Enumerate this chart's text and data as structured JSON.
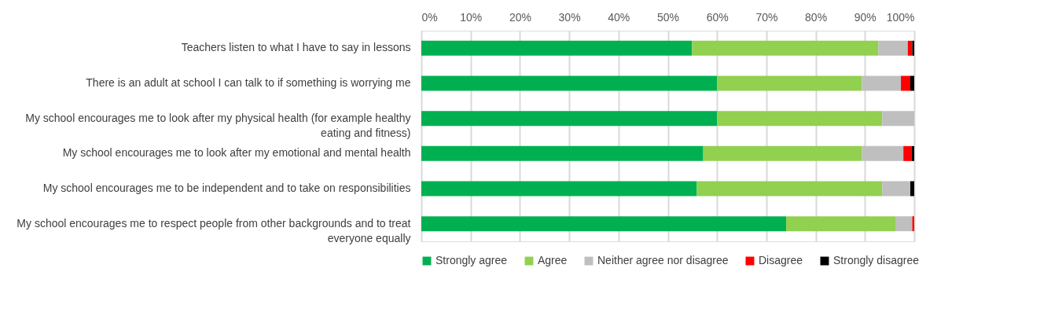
{
  "chart_data": {
    "type": "bar",
    "orientation": "horizontal",
    "stacked": true,
    "categories": [
      "Teachers listen to what I have to say in lessons",
      "There is an adult at school I can talk to if something is worrying me",
      "My school encourages me to look after my physical health (for example healthy eating and fitness)",
      "My school encourages me to look after my emotional and mental health",
      "My school encourages me to be independent and to take on responsibilities",
      "My school encourages me to respect people from other backgrounds and to treat everyone equally"
    ],
    "series": [
      {
        "name": "Strongly agree",
        "color": "#00b050",
        "values": [
          54.9,
          60.0,
          60.0,
          57.2,
          55.9,
          74.0
        ]
      },
      {
        "name": "Agree",
        "color": "#92d050",
        "values": [
          37.8,
          29.4,
          33.5,
          32.2,
          37.6,
          22.3
        ]
      },
      {
        "name": "Neither agree nor disagree",
        "color": "#bfbfbf",
        "values": [
          6.0,
          7.9,
          6.5,
          8.4,
          5.7,
          3.3
        ]
      },
      {
        "name": "Disagree",
        "color": "#ff0000",
        "values": [
          0.9,
          1.9,
          0,
          1.7,
          0,
          0.4
        ]
      },
      {
        "name": "Strongly disagree",
        "color": "#000000",
        "values": [
          0.4,
          0.8,
          0,
          0.5,
          0.8,
          0
        ]
      }
    ],
    "xlim": [
      0,
      100
    ],
    "xticks": [
      {
        "value": 0,
        "label": "0%"
      },
      {
        "value": 10,
        "label": "10%"
      },
      {
        "value": 20,
        "label": "20%"
      },
      {
        "value": 30,
        "label": "30%"
      },
      {
        "value": 40,
        "label": "40%"
      },
      {
        "value": 50,
        "label": "50%"
      },
      {
        "value": 60,
        "label": "60%"
      },
      {
        "value": 70,
        "label": "70%"
      },
      {
        "value": 80,
        "label": "80%"
      },
      {
        "value": 90,
        "label": "90%"
      },
      {
        "value": 100,
        "label": "100%"
      }
    ],
    "grid": "x",
    "legend": "bottom"
  }
}
